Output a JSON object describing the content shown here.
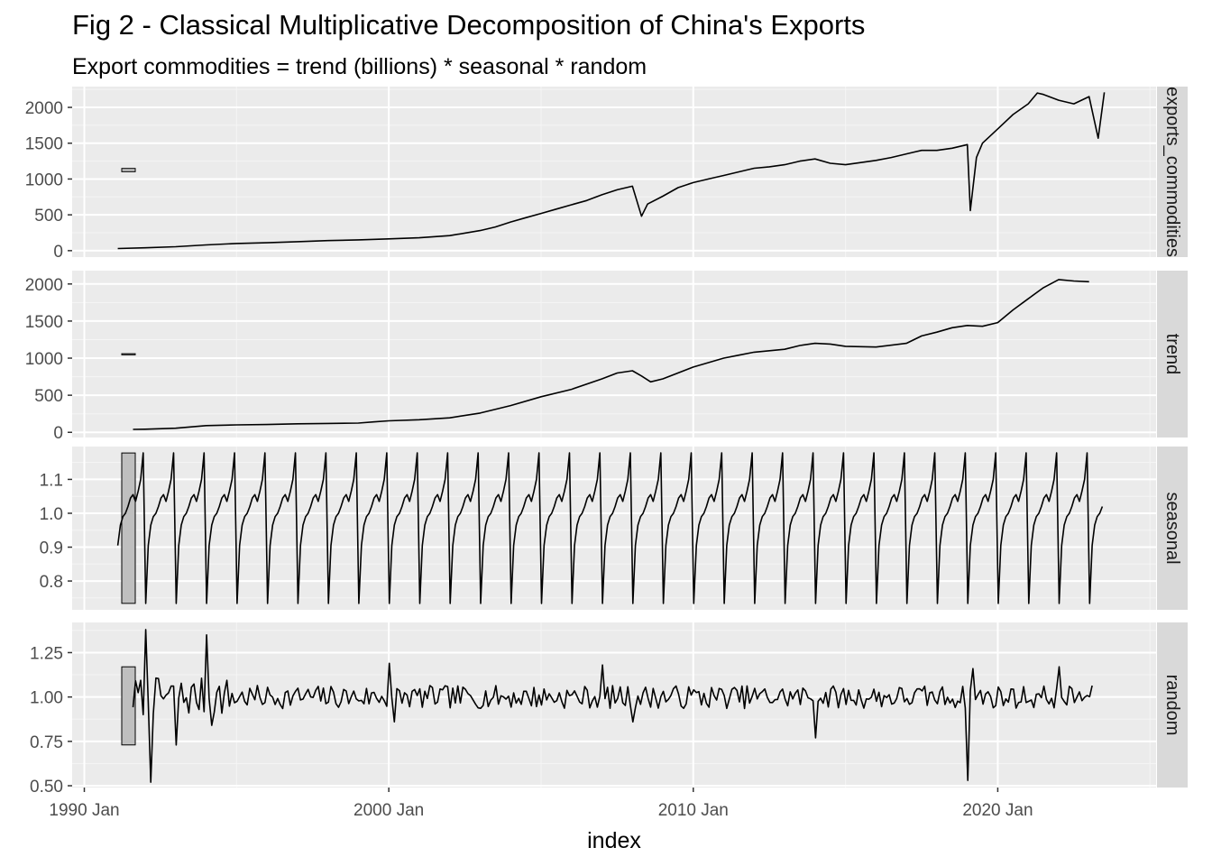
{
  "title": "Fig 2 - Classical Multiplicative Decomposition of China's Exports",
  "subtitle": "Export commodities = trend (billions) * seasonal * random",
  "chart_data": {
    "type": "line",
    "title": "Fig 2 - Classical Multiplicative Decomposition of China's Exports",
    "subtitle": "Export commodities = trend (billions) * seasonal * random",
    "xlabel": "index",
    "x_axis": {
      "range": [
        1990.6,
        2026.2
      ],
      "ticks": [
        1991,
        2001,
        2011,
        2021
      ],
      "tick_labels": [
        "1990 Jan",
        "2000 Jan",
        "2010 Jan",
        "2020 Jan"
      ]
    },
    "grid": true,
    "panel_background": "#ebebeb",
    "strip_background": "#d9d9d9",
    "line_color": "#000000",
    "scale_bar_fill": "#bfbfbf",
    "panels": [
      {
        "name": "exports_commodities",
        "strip_label": "exports_commodities",
        "ylim": [
          -90,
          2290
        ],
        "yticks": [
          0,
          500,
          1000,
          1500,
          2000
        ],
        "ytick_labels": [
          "0",
          "500",
          "1000",
          "1500",
          "2000"
        ],
        "scale_bar": [
          1102,
          1148
        ],
        "series": {
          "x": [
            1992.1,
            1993.0,
            1994.0,
            1995.0,
            1996.0,
            1997.0,
            1998.0,
            1999.0,
            2000.0,
            2001.0,
            2002.0,
            2003.0,
            2004.0,
            2004.5,
            2005.0,
            2005.5,
            2006.0,
            2006.5,
            2007.0,
            2007.5,
            2008.0,
            2008.5,
            2009.0,
            2009.3,
            2009.5,
            2010.0,
            2010.5,
            2011.0,
            2011.5,
            2012.0,
            2012.5,
            2013.0,
            2013.5,
            2014.0,
            2014.5,
            2015.0,
            2015.5,
            2016.0,
            2016.5,
            2017.0,
            2017.5,
            2018.0,
            2018.5,
            2019.0,
            2019.5,
            2020.0,
            2020.1,
            2020.3,
            2020.5,
            2021.0,
            2021.5,
            2022.0,
            2022.3,
            2022.5,
            2023.0,
            2023.5,
            2024.0,
            2024.3,
            2024.5
          ],
          "y": [
            30,
            40,
            55,
            80,
            100,
            110,
            125,
            140,
            150,
            165,
            180,
            210,
            280,
            330,
            400,
            460,
            520,
            580,
            640,
            700,
            780,
            850,
            900,
            480,
            650,
            760,
            880,
            950,
            1000,
            1050,
            1100,
            1150,
            1170,
            1200,
            1250,
            1280,
            1220,
            1200,
            1230,
            1260,
            1300,
            1350,
            1400,
            1400,
            1430,
            1480,
            560,
            1300,
            1500,
            1700,
            1900,
            2050,
            2200,
            2180,
            2100,
            2050,
            2150,
            1570,
            2210
          ]
        }
      },
      {
        "name": "trend",
        "strip_label": "trend",
        "ylim": [
          -70,
          2180
        ],
        "yticks": [
          0,
          500,
          1000,
          1500,
          2000
        ],
        "ytick_labels": [
          "0",
          "500",
          "1000",
          "1500",
          "2000"
        ],
        "scale_bar": [
          1045,
          1060
        ],
        "series": {
          "x": [
            1992.6,
            1993.0,
            1994.0,
            1995.0,
            1996.0,
            1997.0,
            1998.0,
            1999.0,
            2000.0,
            2000.5,
            2001.0,
            2002.0,
            2003.0,
            2004.0,
            2005.0,
            2006.0,
            2007.0,
            2008.0,
            2008.5,
            2009.0,
            2009.3,
            2009.6,
            2010.0,
            2011.0,
            2012.0,
            2012.5,
            2013.0,
            2014.0,
            2014.5,
            2015.0,
            2015.5,
            2016.0,
            2017.0,
            2018.0,
            2018.5,
            2019.0,
            2019.5,
            2020.0,
            2020.5,
            2021.0,
            2021.5,
            2022.0,
            2022.5,
            2023.0,
            2023.5,
            2024.0
          ],
          "y": [
            40,
            42,
            55,
            90,
            100,
            105,
            115,
            120,
            125,
            140,
            155,
            170,
            195,
            260,
            360,
            480,
            580,
            720,
            800,
            830,
            760,
            680,
            720,
            880,
            1000,
            1040,
            1080,
            1120,
            1170,
            1200,
            1190,
            1160,
            1150,
            1200,
            1300,
            1350,
            1410,
            1440,
            1430,
            1480,
            1650,
            1800,
            1950,
            2060,
            2040,
            2030
          ]
        }
      },
      {
        "name": "seasonal",
        "strip_label": "seasonal",
        "ylim": [
          0.715,
          1.197
        ],
        "yticks": [
          0.8,
          0.9,
          1.0,
          1.1
        ],
        "ytick_labels": [
          "0.8",
          "0.9",
          "1.0",
          "1.1"
        ],
        "scale_bar": [
          0.734,
          1.178
        ],
        "seasonal_cycle": [
          0.734,
          0.905,
          0.965,
          0.99,
          1.0,
          1.02,
          1.045,
          1.055,
          1.035,
          1.065,
          1.1,
          1.178
        ],
        "start": 1992.1,
        "end": 2024.5
      },
      {
        "name": "random",
        "strip_label": "random",
        "ylim": [
          0.49,
          1.42
        ],
        "yticks": [
          0.5,
          0.75,
          1.0,
          1.25
        ],
        "ytick_labels": [
          "0.50",
          "0.75",
          "1.00",
          "1.25"
        ],
        "scale_bar": [
          0.73,
          1.17
        ],
        "start": 1992.6,
        "end": 2024.1,
        "spikes": [
          {
            "x": 1993.0,
            "y": 1.38
          },
          {
            "x": 1993.2,
            "y": 0.52
          },
          {
            "x": 1994.0,
            "y": 0.73
          },
          {
            "x": 1995.0,
            "y": 1.35
          },
          {
            "x": 1995.2,
            "y": 0.84
          },
          {
            "x": 2001.0,
            "y": 1.19
          },
          {
            "x": 2001.2,
            "y": 0.86
          },
          {
            "x": 2008.0,
            "y": 1.18
          },
          {
            "x": 2009.0,
            "y": 0.86
          },
          {
            "x": 2015.0,
            "y": 0.77
          },
          {
            "x": 2020.0,
            "y": 0.53
          },
          {
            "x": 2020.2,
            "y": 1.16
          },
          {
            "x": 2023.0,
            "y": 1.17
          }
        ]
      }
    ]
  }
}
